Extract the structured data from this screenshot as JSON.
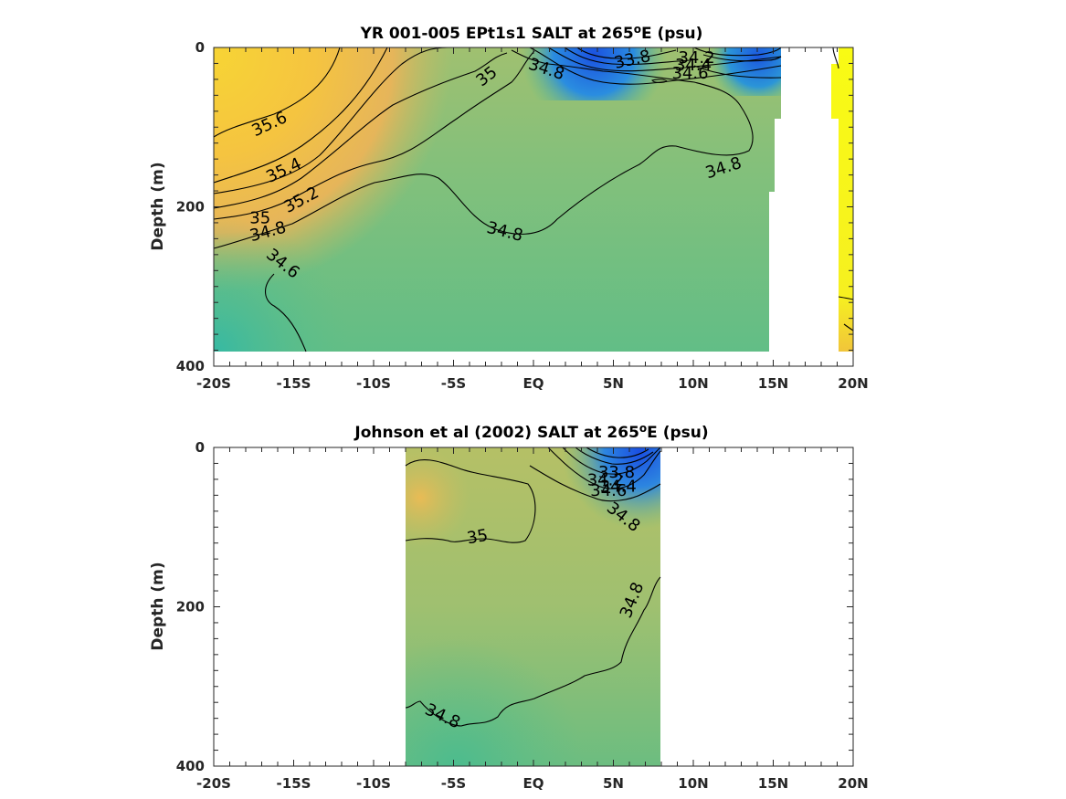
{
  "chart_data": [
    {
      "type": "contour",
      "title": "YR 001-005 EPt1s1 SALT at 265",
      "title_sup": "o",
      "title_tail": "E (psu)",
      "ylabel": "Depth (m)",
      "xlabel": "",
      "xlim": [
        -20,
        20
      ],
      "ylim": [
        0,
        400
      ],
      "y_reversed": true,
      "x_ticks": [
        -20,
        -15,
        -10,
        -5,
        0,
        5,
        10,
        15,
        20
      ],
      "x_tick_labels": [
        "-20S",
        "-15S",
        "-10S",
        "-5S",
        "EQ",
        "5N",
        "10N",
        "15N",
        "20N"
      ],
      "y_ticks": [
        0,
        200,
        400
      ],
      "y_tick_labels": [
        "0",
        "200",
        "400"
      ],
      "colormap": "parula",
      "contour_labels": [
        {
          "text": "35.6",
          "lat": -16.5,
          "depth": 97,
          "angle": -25
        },
        {
          "text": "35.4",
          "lat": -15.6,
          "depth": 155,
          "angle": -25
        },
        {
          "text": "35.2",
          "lat": -14.5,
          "depth": 192,
          "angle": -28
        },
        {
          "text": "35",
          "lat": -17.1,
          "depth": 215,
          "angle": 0
        },
        {
          "text": "34.8",
          "lat": -16.6,
          "depth": 232,
          "angle": -15
        },
        {
          "text": "34.6",
          "lat": -15.7,
          "depth": 272,
          "angle": 38
        },
        {
          "text": "35",
          "lat": -2.9,
          "depth": 37,
          "angle": -38
        },
        {
          "text": "34.8",
          "lat": 0.8,
          "depth": 28,
          "angle": 18
        },
        {
          "text": "33.8",
          "lat": 6.2,
          "depth": 16,
          "angle": -12
        },
        {
          "text": "34.2",
          "lat": 10.2,
          "depth": 14,
          "angle": 0
        },
        {
          "text": "34.4",
          "lat": 10.0,
          "depth": 23,
          "angle": 0
        },
        {
          "text": "34.6",
          "lat": 9.8,
          "depth": 33,
          "angle": 0
        },
        {
          "text": "34.8",
          "lat": 11.9,
          "depth": 152,
          "angle": -18
        },
        {
          "text": "34.8",
          "lat": -1.8,
          "depth": 232,
          "angle": 14
        }
      ]
    },
    {
      "type": "contour",
      "title": "Johnson et al (2002) SALT at 265",
      "title_sup": "o",
      "title_tail": "E (psu)",
      "ylabel": "Depth (m)",
      "xlabel": "",
      "xlim": [
        -20,
        20
      ],
      "ylim": [
        0,
        400
      ],
      "y_reversed": true,
      "data_lat_range": [
        -8,
        8
      ],
      "x_ticks": [
        -20,
        -15,
        -10,
        -5,
        0,
        5,
        10,
        15,
        20
      ],
      "x_tick_labels": [
        "-20S",
        "-15S",
        "-10S",
        "-5S",
        "EQ",
        "5N",
        "10N",
        "15N",
        "20N"
      ],
      "y_ticks": [
        0,
        200,
        400
      ],
      "y_tick_labels": [
        "0",
        "200",
        "400"
      ],
      "colormap": "parula",
      "contour_labels": [
        {
          "text": "35",
          "lat": -3.5,
          "depth": 113,
          "angle": -10
        },
        {
          "text": "33.8",
          "lat": 5.2,
          "depth": 32,
          "angle": 0
        },
        {
          "text": "34.2",
          "lat": 4.5,
          "depth": 42,
          "angle": 0
        },
        {
          "text": "34.4",
          "lat": 5.3,
          "depth": 50,
          "angle": 0
        },
        {
          "text": "34.6",
          "lat": 4.7,
          "depth": 55,
          "angle": 0
        },
        {
          "text": "34.8",
          "lat": 5.6,
          "depth": 88,
          "angle": 38
        },
        {
          "text": "34.8",
          "lat": 6.2,
          "depth": 192,
          "angle": -68
        },
        {
          "text": "34.8",
          "lat": -5.7,
          "depth": 338,
          "angle": 25
        }
      ]
    }
  ]
}
